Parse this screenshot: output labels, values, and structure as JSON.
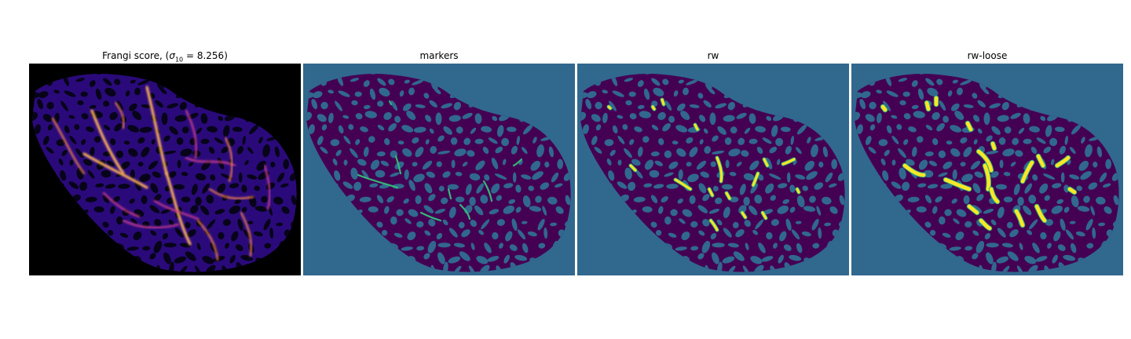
{
  "panels": [
    {
      "title_prefix": "Frangi score, (",
      "title_sigma": "σ",
      "title_sub": "10",
      "title_suffix": " = 8.256)",
      "kind": "frangi",
      "colormap": "magma/plasma"
    },
    {
      "title": "markers",
      "kind": "markers",
      "colormap": "viridis"
    },
    {
      "title": "rw",
      "kind": "rw",
      "colormap": "viridis"
    },
    {
      "title": "rw-loose",
      "kind": "rw-loose",
      "colormap": "viridis"
    }
  ],
  "colors": {
    "frangi_background": "#000000",
    "frangi_tissue": "#2a0a7a",
    "frangi_vessel_hot": "#ffb25a",
    "label_background": "#31688e",
    "label_tissue": "#440154",
    "label_marker": "#35b779",
    "label_segment": "#fde725"
  }
}
